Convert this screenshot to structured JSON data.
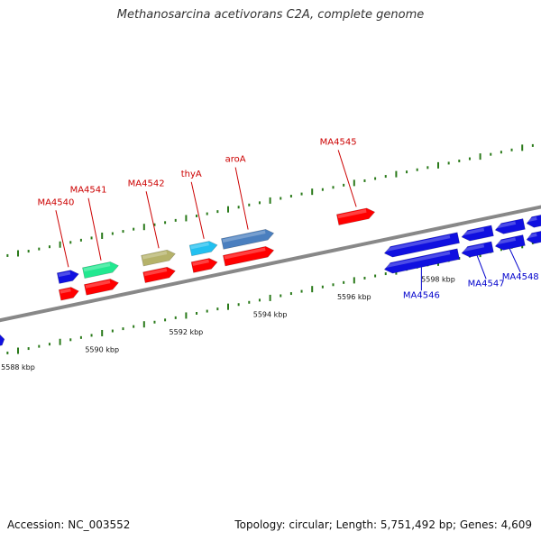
{
  "title": "Methanosarcina acetivorans C2A, complete genome",
  "accession": "Accession: NC_003552",
  "summary": "Topology: circular; Length: 5,751,492 bp; Genes: 4,609",
  "colors": {
    "backbone": "#888888",
    "tick": "#2a7a1a",
    "forward_label": "#cc0000",
    "reverse_label": "#0000cc",
    "cds": "#ff0000",
    "gene_blue": "#1010e0"
  },
  "scale": {
    "unit": "kbp",
    "labels": [
      {
        "kbp": 5588,
        "text": "5588 kbp"
      },
      {
        "kbp": 5590,
        "text": "5590 kbp"
      },
      {
        "kbp": 5592,
        "text": "5592 kbp"
      },
      {
        "kbp": 5594,
        "text": "5594 kbp"
      },
      {
        "kbp": 5596,
        "text": "5596 kbp"
      },
      {
        "kbp": 5598,
        "text": "5598 kbp"
      }
    ]
  },
  "features": [
    {
      "label": "MA4540",
      "strand": "+",
      "color": "#1010e0",
      "start_kbp": 5588.95,
      "end_kbp": 5589.45
    },
    {
      "label": "MA4541",
      "strand": "+",
      "color": "#22e890",
      "start_kbp": 5589.55,
      "end_kbp": 5590.4
    },
    {
      "label": "MA4542",
      "strand": "+",
      "color": "#b5b26a",
      "start_kbp": 5590.95,
      "end_kbp": 5591.75
    },
    {
      "label": "thyA",
      "strand": "+",
      "color": "#22c0f0",
      "start_kbp": 5592.1,
      "end_kbp": 5592.75
    },
    {
      "label": "aroA",
      "strand": "+",
      "color": "#4a7fbf",
      "start_kbp": 5592.85,
      "end_kbp": 5594.1
    },
    {
      "label": "MA4545",
      "strand": "+",
      "color": "#ff0000",
      "start_kbp": 5595.6,
      "end_kbp": 5596.5
    },
    {
      "label": "MA4546",
      "strand": "-",
      "color": "#1010e0",
      "start_kbp": 5596.7,
      "end_kbp": 5598.5
    },
    {
      "label": "MA4547",
      "strand": "-",
      "color": "#1010e0",
      "start_kbp": 5598.55,
      "end_kbp": 5599.3
    },
    {
      "label": "MA4548",
      "strand": "-",
      "color": "#1010e0",
      "start_kbp": 5599.35,
      "end_kbp": 5600.05
    }
  ]
}
